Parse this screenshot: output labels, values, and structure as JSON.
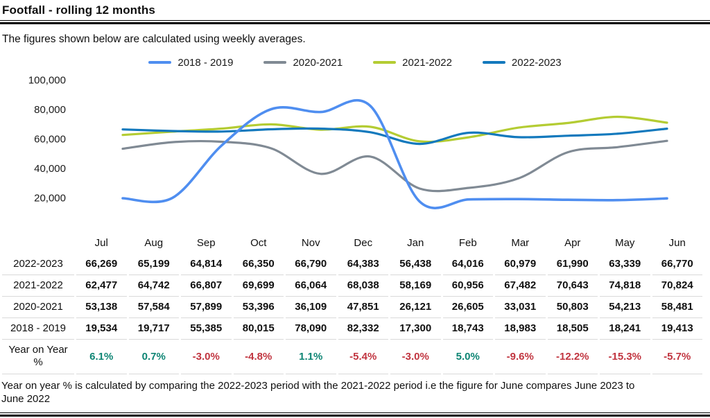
{
  "header": {
    "title": "Footfall - rolling 12 months",
    "subtitle": "The figures shown below are calculated using weekly averages."
  },
  "chart_data": {
    "type": "line",
    "title": "Footfall - rolling 12 months",
    "xlabel": "",
    "ylabel": "",
    "grid": false,
    "legend_position": "top",
    "smoothed": true,
    "categories": [
      "Jul",
      "Aug",
      "Sep",
      "Oct",
      "Nov",
      "Dec",
      "Jan",
      "Feb",
      "Mar",
      "Apr",
      "May",
      "Jun"
    ],
    "yticks": [
      100000,
      80000,
      60000,
      40000,
      20000
    ],
    "ytick_labels": [
      "100,000",
      "80,000",
      "60,000",
      "40,000",
      "20,000"
    ],
    "ylim": [
      10000,
      105000
    ],
    "series": [
      {
        "name": "2018 - 2019",
        "color": "#4f8ef0",
        "values": [
          19534,
          19717,
          55385,
          80015,
          78090,
          82332,
          17300,
          18743,
          18983,
          18505,
          18241,
          19413
        ]
      },
      {
        "name": "2020-2021",
        "color": "#808a94",
        "values": [
          53138,
          57584,
          57899,
          53396,
          36109,
          47851,
          26121,
          26605,
          33031,
          50803,
          54213,
          58481
        ]
      },
      {
        "name": "2021-2022",
        "color": "#b4cc33",
        "values": [
          62477,
          64742,
          66807,
          69699,
          66064,
          68038,
          58169,
          60956,
          67482,
          70643,
          74818,
          70824
        ]
      },
      {
        "name": "2022-2023",
        "color": "#1379bd",
        "values": [
          66269,
          65199,
          64814,
          66350,
          66790,
          64383,
          56438,
          64016,
          60979,
          61990,
          63339,
          66770
        ]
      }
    ]
  },
  "table": {
    "months": [
      "Jul",
      "Aug",
      "Sep",
      "Oct",
      "Nov",
      "Dec",
      "Jan",
      "Feb",
      "Mar",
      "Apr",
      "May",
      "Jun"
    ],
    "rows": [
      {
        "label": "2022-2023",
        "values": [
          "66,269",
          "65,199",
          "64,814",
          "66,350",
          "66,790",
          "64,383",
          "56,438",
          "64,016",
          "60,979",
          "61,990",
          "63,339",
          "66,770"
        ]
      },
      {
        "label": "2021-2022",
        "values": [
          "62,477",
          "64,742",
          "66,807",
          "69,699",
          "66,064",
          "68,038",
          "58,169",
          "60,956",
          "67,482",
          "70,643",
          "74,818",
          "70,824"
        ]
      },
      {
        "label": "2020-2021",
        "values": [
          "53,138",
          "57,584",
          "57,899",
          "53,396",
          "36,109",
          "47,851",
          "26,121",
          "26,605",
          "33,031",
          "50,803",
          "54,213",
          "58,481"
        ]
      },
      {
        "label": "2018 - 2019",
        "values": [
          "19,534",
          "19,717",
          "55,385",
          "80,015",
          "78,090",
          "82,332",
          "17,300",
          "18,743",
          "18,983",
          "18,505",
          "18,241",
          "19,413"
        ]
      }
    ],
    "yoy": {
      "label": "Year on Year %",
      "values": [
        "6.1%",
        "0.7%",
        "-3.0%",
        "-4.8%",
        "1.1%",
        "-5.4%",
        "-3.0%",
        "5.0%",
        "-9.6%",
        "-12.2%",
        "-15.3%",
        "-5.7%"
      ]
    }
  },
  "footer": {
    "note": "Year on year % is calculated by comparing the 2022-2023 period with the 2021-2022 period i.e the figure for June compares June 2023 to June 2022"
  },
  "colors": {
    "positive": "#0e8574",
    "negative": "#c13540",
    "rule": "#000000",
    "row_line": "#d9d9d9"
  }
}
